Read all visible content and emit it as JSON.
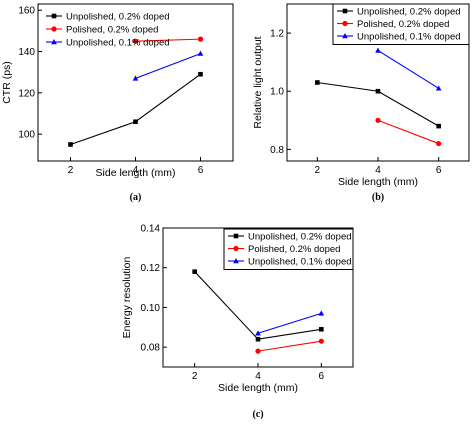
{
  "chart_data": [
    {
      "type": "line",
      "panel_label": "(a)",
      "xlabel": "Side length  (mm)",
      "ylabel": "CTR (ps)",
      "xlim": [
        1,
        7
      ],
      "ylim": [
        87,
        163
      ],
      "xticks": [
        "2",
        "4",
        "6"
      ],
      "yticks": [
        "100",
        "120",
        "140",
        "160"
      ],
      "legend": "top-left",
      "series": [
        {
          "name": "Unpolished, 0.2% doped",
          "color": "#000000",
          "marker": "square",
          "x": [
            2,
            4,
            6
          ],
          "y": [
            95,
            106,
            129
          ]
        },
        {
          "name": "Polished, 0.2% doped",
          "color": "#ff0000",
          "marker": "circle",
          "x": [
            4,
            6
          ],
          "y": [
            145,
            146
          ]
        },
        {
          "name": "Unpolished, 0.1% doped",
          "color": "#0000ff",
          "marker": "triangle",
          "x": [
            4,
            6
          ],
          "y": [
            127,
            139
          ]
        }
      ]
    },
    {
      "type": "line",
      "panel_label": "(b)",
      "xlabel": "Side length (mm)",
      "ylabel": "Relative light output",
      "xlim": [
        1,
        7
      ],
      "ylim": [
        0.76,
        1.3
      ],
      "xticks": [
        "2",
        "4",
        "6"
      ],
      "yticks": [
        "0.8",
        "1.0",
        "1.2"
      ],
      "legend": "top-right",
      "series": [
        {
          "name": "Unpolished, 0.2% doped",
          "color": "#000000",
          "marker": "square",
          "x": [
            2,
            4,
            6
          ],
          "y": [
            1.03,
            1.0,
            0.88
          ]
        },
        {
          "name": "Polished, 0.2% doped",
          "color": "#ff0000",
          "marker": "circle",
          "x": [
            4,
            6
          ],
          "y": [
            0.9,
            0.82
          ]
        },
        {
          "name": "Unpolished, 0.1% doped",
          "color": "#0000ff",
          "marker": "triangle",
          "x": [
            4,
            6
          ],
          "y": [
            1.14,
            1.01
          ]
        }
      ]
    },
    {
      "type": "line",
      "panel_label": "(c)",
      "xlabel": "Side length (mm)",
      "ylabel": "Energy resolution",
      "xlim": [
        1,
        7
      ],
      "ylim": [
        0.07,
        0.14
      ],
      "xticks": [
        "2",
        "4",
        "6"
      ],
      "yticks": [
        "0.08",
        "0.10",
        "0.12",
        "0.14"
      ],
      "legend": "top-right",
      "series": [
        {
          "name": "Unpolished, 0.2% doped",
          "color": "#000000",
          "marker": "square",
          "x": [
            2,
            4,
            6
          ],
          "y": [
            0.118,
            0.084,
            0.089
          ]
        },
        {
          "name": "Polished, 0.2% doped",
          "color": "#ff0000",
          "marker": "circle",
          "x": [
            4,
            6
          ],
          "y": [
            0.078,
            0.083
          ]
        },
        {
          "name": "Unpolished, 0.1% doped",
          "color": "#0000ff",
          "marker": "triangle",
          "x": [
            4,
            6
          ],
          "y": [
            0.087,
            0.097
          ]
        }
      ]
    }
  ]
}
